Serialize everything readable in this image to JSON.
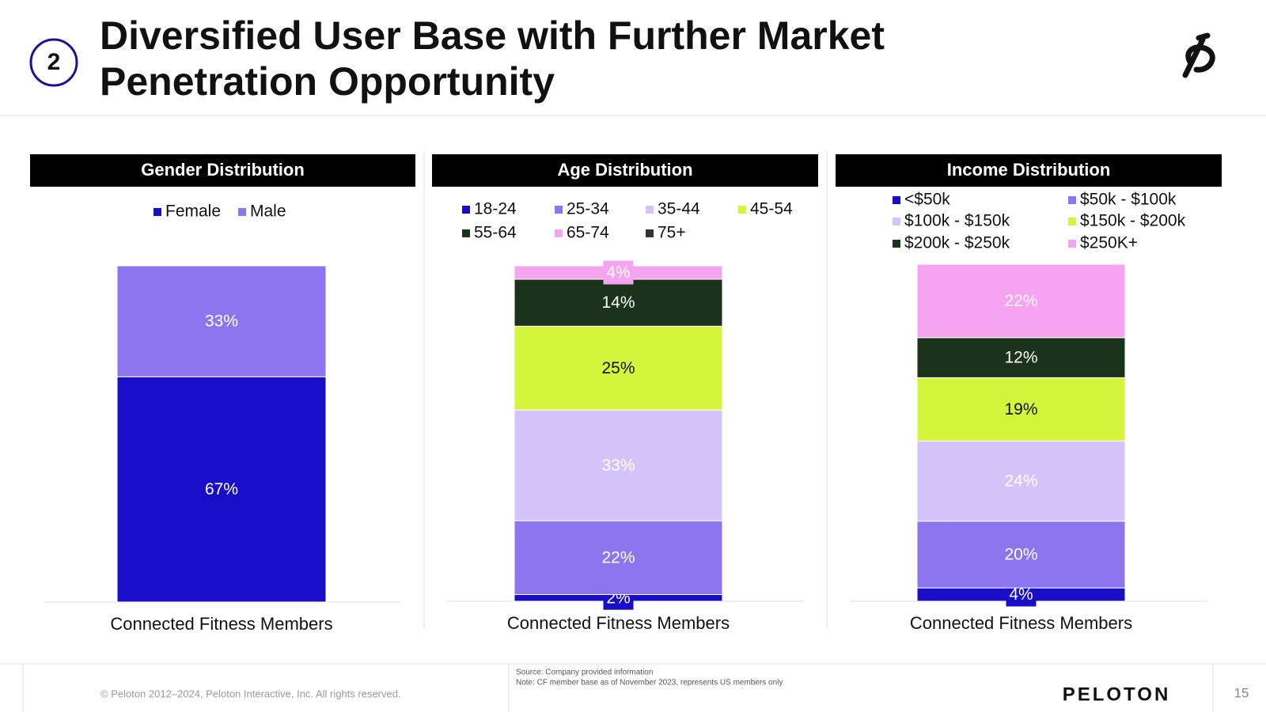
{
  "slide": {
    "badge": "2",
    "title_lines": [
      "Diversified User Base with Further Market",
      "Penetration Opportunity"
    ],
    "copyright": "© Peloton 2012–2024, Peloton Interactive, Inc. All rights reserved.",
    "source": "Source: Company provided information",
    "note": "Note: CF member base as of November 2023, represents US members only",
    "brand": "PELOTON",
    "page_number": "15"
  },
  "chart_data": [
    {
      "type": "stacked_bar",
      "title": "Gender Distribution",
      "categories": [
        "Connected Fitness Members"
      ],
      "series": [
        {
          "name": "Female",
          "color": "#1a0dc8",
          "values": [
            67
          ],
          "value_labels": [
            "67%"
          ]
        },
        {
          "name": "Male",
          "color": "#8b76ef",
          "values": [
            33
          ],
          "value_labels": [
            "33%"
          ]
        }
      ]
    },
    {
      "type": "stacked_bar",
      "title": "Age Distribution",
      "categories": [
        "Connected Fitness Members"
      ],
      "series": [
        {
          "name": "18-24",
          "color": "#1a0dc8",
          "values": [
            2
          ],
          "value_labels": [
            "2%"
          ]
        },
        {
          "name": "25-34",
          "color": "#8b76ef",
          "values": [
            22
          ],
          "value_labels": [
            "22%"
          ]
        },
        {
          "name": "35-44",
          "color": "#d4c4f9",
          "values": [
            33
          ],
          "value_labels": [
            "33%"
          ]
        },
        {
          "name": "45-54",
          "color": "#d5f53d",
          "values": [
            25
          ],
          "value_labels": [
            "25%"
          ]
        },
        {
          "name": "55-64",
          "color": "#1b331b",
          "values": [
            14
          ],
          "value_labels": [
            "14%"
          ]
        },
        {
          "name": "65-74",
          "color": "#f6a4f1",
          "values": [
            4
          ],
          "value_labels": [
            "4%"
          ]
        },
        {
          "name": "75+",
          "color": "#333333",
          "values": [
            null
          ],
          "value_labels": [
            null
          ]
        }
      ]
    },
    {
      "type": "stacked_bar",
      "title": "Income Distribution",
      "categories": [
        "Connected Fitness Members"
      ],
      "series": [
        {
          "name": "<$50k",
          "color": "#1a0dc8",
          "values": [
            4
          ],
          "value_labels": [
            "4%"
          ]
        },
        {
          "name": "$50k - $100k",
          "color": "#8b76ef",
          "values": [
            20
          ],
          "value_labels": [
            "20%"
          ]
        },
        {
          "name": "$100k - $150k",
          "color": "#d4c4f9",
          "values": [
            24
          ],
          "value_labels": [
            "24%"
          ]
        },
        {
          "name": "$150k - $200k",
          "color": "#d5f53d",
          "values": [
            19
          ],
          "value_labels": [
            "19%"
          ]
        },
        {
          "name": "$200k - $250k",
          "color": "#1b331b",
          "values": [
            12
          ],
          "value_labels": [
            "12%"
          ]
        },
        {
          "name": "$250K+",
          "color": "#f6a4f1",
          "values": [
            22
          ],
          "value_labels": [
            "22%"
          ]
        }
      ]
    }
  ]
}
